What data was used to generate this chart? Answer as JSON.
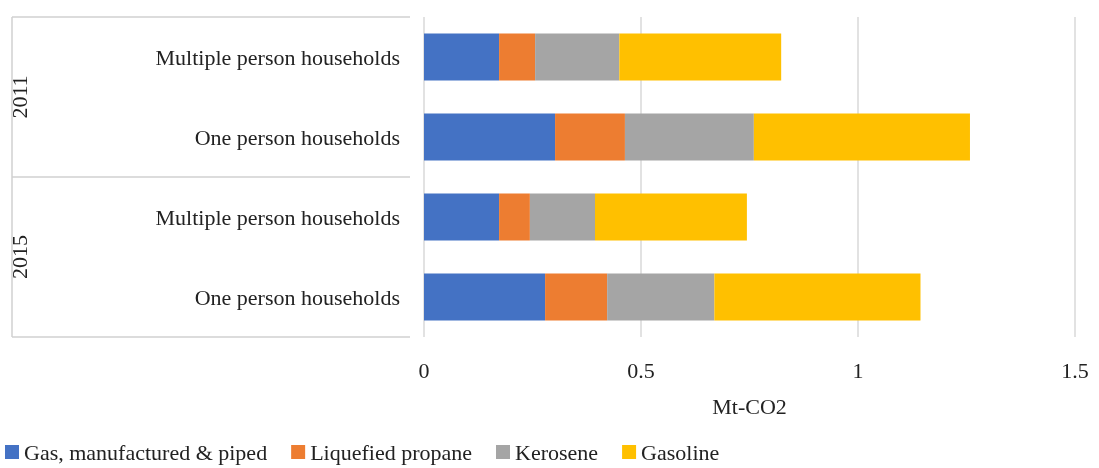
{
  "chart_data": {
    "type": "bar",
    "orientation": "horizontal",
    "stacked": true,
    "categories": [
      "Multiple person households",
      "One person households",
      "Multiple person households",
      "One person households"
    ],
    "annotations": [
      "2011",
      "2015"
    ],
    "series": [
      {
        "name": "Gas, manufactured & piped",
        "color": "#4472c4",
        "values": [
          0.173,
          0.302,
          0.173,
          0.279
        ]
      },
      {
        "name": "Liquefied propane",
        "color": "#ed7d31",
        "values": [
          0.083,
          0.161,
          0.071,
          0.143
        ]
      },
      {
        "name": "Kerosene",
        "color": "#a5a5a5",
        "values": [
          0.194,
          0.297,
          0.15,
          0.247
        ]
      },
      {
        "name": "Gasoline",
        "color": "#ffc000",
        "values": [
          0.373,
          0.498,
          0.35,
          0.475
        ]
      }
    ],
    "xlabel": "Mt-CO2",
    "xlim": [
      0,
      1.5
    ],
    "xticks": [
      0,
      0.5,
      1,
      1.5
    ],
    "grid": "x",
    "legend": "bottom"
  }
}
